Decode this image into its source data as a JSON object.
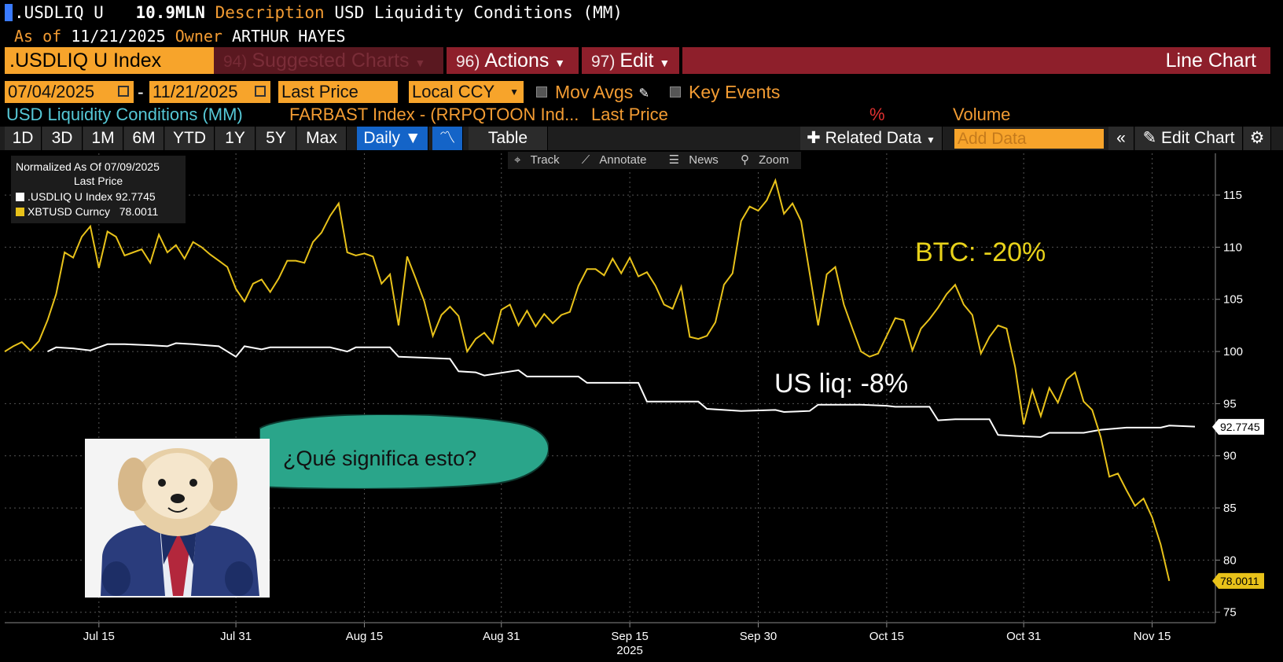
{
  "header": {
    "ticker": ".USDLIQ U",
    "value": "10.9MLN",
    "description_label": "Description",
    "description": "USD Liquidity Conditions (MM)",
    "as_of_label": "As of",
    "as_of": "11/21/2025",
    "owner_label": "Owner",
    "owner": "ARTHUR HAYES"
  },
  "command_bar": {
    "security": ".USDLIQ U Index",
    "suggested_num": "94)",
    "suggested": "Suggested Charts",
    "actions_num": "96)",
    "actions": "Actions",
    "edit_num": "97)",
    "edit": "Edit",
    "chart_type": "Line Chart"
  },
  "controls": {
    "start_date": "07/04/2025",
    "separator": "-",
    "end_date": "11/21/2025",
    "field": "Last Price",
    "currency": "Local CCY",
    "mov_avgs": "Mov Avgs",
    "key_events": "Key Events"
  },
  "series_row": {
    "s1": "USD Liquidity Conditions (MM)",
    "s2": "FARBAST Index - (RRPQTOON Ind...",
    "s3": "Last Price",
    "pct": "%",
    "volume": "Volume"
  },
  "toolbar": {
    "ranges": [
      "1D",
      "3D",
      "1M",
      "6M",
      "YTD",
      "1Y",
      "5Y",
      "Max"
    ],
    "frequency": "Daily",
    "table": "Table",
    "related": "Related Data",
    "add_data_placeholder": "Add Data",
    "edit_chart": "Edit Chart"
  },
  "chart_tools": {
    "track": "Track",
    "annotate": "Annotate",
    "news": "News",
    "zoom": "Zoom"
  },
  "legend": {
    "title": "Normalized As Of 07/09/2025",
    "subtitle": "Last Price",
    "s1": ".USDLIQ U Index 92.7745",
    "s2": "XBTUSD Curncy   78.0011"
  },
  "annotations": {
    "btc": "BTC: -20%",
    "usliq": "US liq: -8%",
    "bubble": "¿Qué significa esto?"
  },
  "colors": {
    "orange": "#f7a42b",
    "red_bar": "#8e1f2b",
    "btc_line": "#e8c21a",
    "liq_line": "#ffffff",
    "bubble": "#2aa58a"
  },
  "chart_data": {
    "type": "line",
    "title": "USD Liquidity Conditions (MM)",
    "xlabel": "2025",
    "ylabel": "",
    "ylim": [
      74,
      119
    ],
    "x_range": [
      0,
      139
    ],
    "x_ticks": [
      {
        "t": 11,
        "label": "Jul 15"
      },
      {
        "t": 27,
        "label": "Jul 31"
      },
      {
        "t": 42,
        "label": "Aug 15"
      },
      {
        "t": 58,
        "label": "Aug 31"
      },
      {
        "t": 73,
        "label": "Sep 15"
      },
      {
        "t": 88,
        "label": "Sep 30"
      },
      {
        "t": 103,
        "label": "Oct 15"
      },
      {
        "t": 119,
        "label": "Oct 31"
      },
      {
        "t": 134,
        "label": "Nov 15"
      }
    ],
    "x_year_label": "2025",
    "y_ticks": [
      75,
      80,
      85,
      90,
      95,
      100,
      105,
      110,
      115
    ],
    "series": [
      {
        "name": ".USDLIQ U Index",
        "last": "92.7745",
        "color": "#ffffff",
        "points": [
          [
            5,
            100
          ],
          [
            6,
            100.4
          ],
          [
            8,
            100.3
          ],
          [
            10,
            100.1
          ],
          [
            12,
            100.7
          ],
          [
            14,
            100.7
          ],
          [
            17,
            100.6
          ],
          [
            19,
            100.5
          ],
          [
            20,
            100.8
          ],
          [
            22,
            100.7
          ],
          [
            25,
            100.5
          ],
          [
            27,
            99.5
          ],
          [
            28,
            100.5
          ],
          [
            30,
            100.2
          ],
          [
            31,
            100.4
          ],
          [
            33,
            100.4
          ],
          [
            35,
            100.4
          ],
          [
            38,
            100.4
          ],
          [
            40,
            100
          ],
          [
            41,
            100.4
          ],
          [
            43,
            100.4
          ],
          [
            45,
            100.4
          ],
          [
            46,
            99.5
          ],
          [
            49,
            99.4
          ],
          [
            52,
            99.3
          ],
          [
            53,
            98.1
          ],
          [
            55,
            98.0
          ],
          [
            56,
            97.7
          ],
          [
            60,
            98.2
          ],
          [
            61,
            97.6
          ],
          [
            67,
            97.6
          ],
          [
            68,
            97.0
          ],
          [
            70,
            97.0
          ],
          [
            74,
            97.0
          ],
          [
            75,
            95.2
          ],
          [
            81,
            95.2
          ],
          [
            82,
            94.5
          ],
          [
            86,
            94.3
          ],
          [
            90,
            94.4
          ],
          [
            91,
            94.2
          ],
          [
            94,
            94.3
          ],
          [
            95,
            94.9
          ],
          [
            100,
            94.9
          ],
          [
            103,
            94.8
          ],
          [
            104,
            94.7
          ],
          [
            108,
            94.7
          ],
          [
            109,
            93.4
          ],
          [
            111,
            93.5
          ],
          [
            115,
            93.5
          ],
          [
            116,
            92.0
          ],
          [
            118,
            91.9
          ],
          [
            121,
            91.8
          ],
          [
            122,
            92.2
          ],
          [
            126,
            92.2
          ],
          [
            128,
            92.5
          ],
          [
            131,
            92.7
          ],
          [
            135,
            92.7
          ],
          [
            136,
            92.9
          ],
          [
            139,
            92.8
          ]
        ]
      },
      {
        "name": "XBTUSD Curncy",
        "last": "78.0011",
        "color": "#e8c21a",
        "points": [
          [
            0,
            100
          ],
          [
            1,
            100.5
          ],
          [
            2,
            100.9
          ],
          [
            3,
            100.1
          ],
          [
            4,
            101
          ],
          [
            5,
            103
          ],
          [
            6,
            105.5
          ],
          [
            7,
            109.5
          ],
          [
            8,
            109
          ],
          [
            9,
            111
          ],
          [
            10,
            112
          ],
          [
            11,
            108
          ],
          [
            12,
            111.5
          ],
          [
            13,
            111
          ],
          [
            14,
            109.2
          ],
          [
            15,
            109.5
          ],
          [
            16,
            109.8
          ],
          [
            17,
            108.5
          ],
          [
            18,
            111.2
          ],
          [
            19,
            109.5
          ],
          [
            20,
            110.2
          ],
          [
            21,
            108.9
          ],
          [
            22,
            110.5
          ],
          [
            23,
            110
          ],
          [
            24,
            109.3
          ],
          [
            25,
            108.7
          ],
          [
            26,
            108.1
          ],
          [
            27,
            106
          ],
          [
            28,
            104.8
          ],
          [
            29,
            106.5
          ],
          [
            30,
            106.9
          ],
          [
            31,
            105.7
          ],
          [
            32,
            107
          ],
          [
            33,
            108.7
          ],
          [
            34,
            108.7
          ],
          [
            35,
            108.5
          ],
          [
            36,
            110.5
          ],
          [
            37,
            111.4
          ],
          [
            38,
            113
          ],
          [
            39,
            114.2
          ],
          [
            40,
            109.5
          ],
          [
            41,
            109.2
          ],
          [
            42,
            109.4
          ],
          [
            43,
            109.1
          ],
          [
            44,
            106.5
          ],
          [
            45,
            107.4
          ],
          [
            46,
            102.5
          ],
          [
            47,
            109.1
          ],
          [
            48,
            107
          ],
          [
            49,
            104.8
          ],
          [
            50,
            101.5
          ],
          [
            51,
            103.5
          ],
          [
            52,
            104.3
          ],
          [
            53,
            103.4
          ],
          [
            54,
            100
          ],
          [
            55,
            101.2
          ],
          [
            56,
            101.8
          ],
          [
            57,
            100.8
          ],
          [
            58,
            104
          ],
          [
            59,
            104.5
          ],
          [
            60,
            102.5
          ],
          [
            61,
            103.9
          ],
          [
            62,
            102.4
          ],
          [
            63,
            103.6
          ],
          [
            64,
            102.7
          ],
          [
            65,
            103.5
          ],
          [
            66,
            103.8
          ],
          [
            67,
            106.3
          ],
          [
            68,
            107.9
          ],
          [
            69,
            107.9
          ],
          [
            70,
            107.3
          ],
          [
            71,
            108.9
          ],
          [
            72,
            107.5
          ],
          [
            73,
            109
          ],
          [
            74,
            107.2
          ],
          [
            75,
            107.6
          ],
          [
            76,
            106.3
          ],
          [
            77,
            104.5
          ],
          [
            78,
            104.1
          ],
          [
            79,
            106.2
          ],
          [
            80,
            101.4
          ],
          [
            81,
            101.2
          ],
          [
            82,
            101.5
          ],
          [
            83,
            102.8
          ],
          [
            84,
            106.4
          ],
          [
            85,
            107.5
          ],
          [
            86,
            112.5
          ],
          [
            87,
            113.9
          ],
          [
            88,
            113.5
          ],
          [
            89,
            114.5
          ],
          [
            90,
            116.4
          ],
          [
            91,
            113.2
          ],
          [
            92,
            114.2
          ],
          [
            93,
            112.5
          ],
          [
            94,
            107.5
          ],
          [
            95,
            102.5
          ],
          [
            96,
            107.4
          ],
          [
            97,
            108.1
          ],
          [
            98,
            104.5
          ],
          [
            99,
            102.2
          ],
          [
            100,
            100
          ],
          [
            101,
            99.5
          ],
          [
            102,
            99.8
          ],
          [
            103,
            101.5
          ],
          [
            104,
            103.2
          ],
          [
            105,
            103
          ],
          [
            106,
            100.1
          ],
          [
            107,
            102.2
          ],
          [
            108,
            103.1
          ],
          [
            109,
            104.2
          ],
          [
            110,
            105.5
          ],
          [
            111,
            106.4
          ],
          [
            112,
            104.5
          ],
          [
            113,
            103.5
          ],
          [
            114,
            99.8
          ],
          [
            115,
            101.4
          ],
          [
            116,
            102.5
          ],
          [
            117,
            102.2
          ],
          [
            118,
            98.5
          ],
          [
            119,
            93
          ],
          [
            120,
            96.3
          ],
          [
            121,
            93.8
          ],
          [
            122,
            96.5
          ],
          [
            123,
            95.1
          ],
          [
            124,
            97.3
          ],
          [
            125,
            98
          ],
          [
            126,
            95.2
          ],
          [
            127,
            94.4
          ],
          [
            128,
            91.8
          ],
          [
            129,
            88
          ],
          [
            130,
            88.3
          ],
          [
            131,
            86.7
          ],
          [
            132,
            85.2
          ],
          [
            133,
            85.9
          ],
          [
            134,
            84.1
          ],
          [
            135,
            81.5
          ],
          [
            136,
            78
          ]
        ]
      }
    ]
  }
}
